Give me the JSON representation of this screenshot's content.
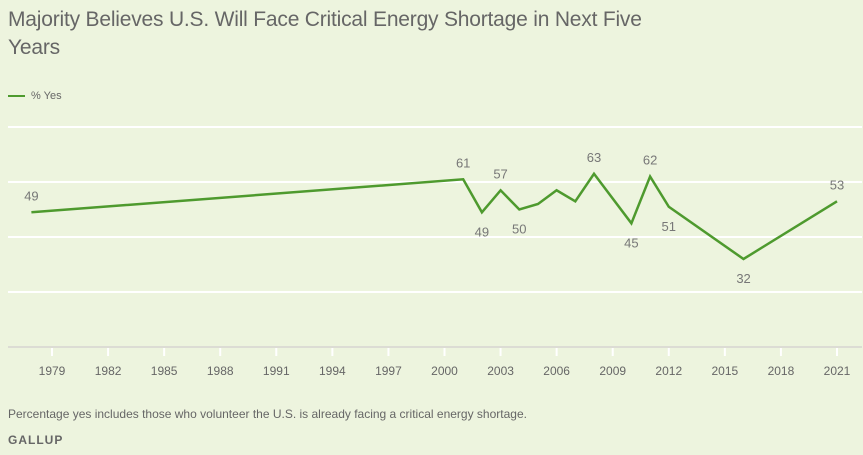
{
  "chart_data": {
    "type": "line",
    "title": "Majority Believes U.S. Will Face Critical Energy Shortage in Next Five Years",
    "xlabel": "",
    "ylabel": "",
    "ylim": [
      0,
      80
    ],
    "xlim": [
      1976.9,
      2022.4
    ],
    "grid": true,
    "y_gridlines": [
      20,
      40,
      60,
      80
    ],
    "x_ticks": [
      1979,
      1982,
      1985,
      1988,
      1991,
      1994,
      1997,
      2000,
      2003,
      2006,
      2009,
      2012,
      2015,
      2018,
      2021
    ],
    "legend": {
      "placement": "top-left",
      "entries": [
        "% Yes"
      ]
    },
    "series": [
      {
        "name": "% Yes",
        "color": "#4e9a2e",
        "points": [
          {
            "x": 1977.9,
            "y": 49,
            "label": "49",
            "label_pos": "above"
          },
          {
            "x": 2001,
            "y": 61,
            "label": "61",
            "label_pos": "above"
          },
          {
            "x": 2002,
            "y": 49,
            "label": "49",
            "label_pos": "below"
          },
          {
            "x": 2003,
            "y": 57,
            "label": "57",
            "label_pos": "above"
          },
          {
            "x": 2004,
            "y": 50,
            "label": "50",
            "label_pos": "below"
          },
          {
            "x": 2005,
            "y": 52
          },
          {
            "x": 2006,
            "y": 57
          },
          {
            "x": 2007,
            "y": 53
          },
          {
            "x": 2008,
            "y": 63,
            "label": "63",
            "label_pos": "above"
          },
          {
            "x": 2010,
            "y": 45,
            "label": "45",
            "label_pos": "below"
          },
          {
            "x": 2011,
            "y": 62,
            "label": "62",
            "label_pos": "above"
          },
          {
            "x": 2012,
            "y": 51,
            "label": "51",
            "label_pos": "below"
          },
          {
            "x": 2016,
            "y": 32,
            "label": "32",
            "label_pos": "below"
          },
          {
            "x": 2021,
            "y": 53,
            "label": "53",
            "label_pos": "above"
          }
        ]
      }
    ],
    "note": "Percentage yes includes those who volunteer the U.S. is already facing a critical energy shortage.",
    "source": "GALLUP"
  }
}
